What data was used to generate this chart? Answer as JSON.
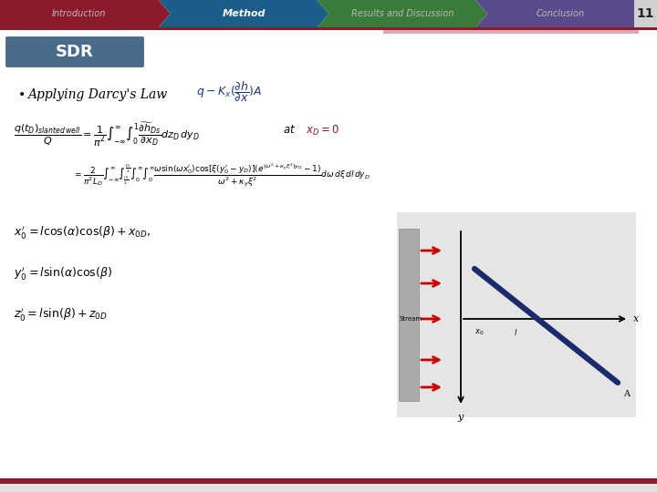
{
  "nav_items": [
    "Introduction",
    "Method",
    "Results and Discussion",
    "Conclusion"
  ],
  "nav_colors": [
    "#8B1A2A",
    "#1B5E8A",
    "#3A7A3A",
    "#5B4A8A"
  ],
  "nav_active": 1,
  "nav_text_colors": [
    "#bbbbbb",
    "#ffffff",
    "#bbbbbb",
    "#bbbbbb"
  ],
  "page_number": "11",
  "sdr_box_color": "#4A6A8A",
  "sdr_text": "SDR",
  "background_color": "#ffffff",
  "bottom_bar_color": "#8B1A2A"
}
